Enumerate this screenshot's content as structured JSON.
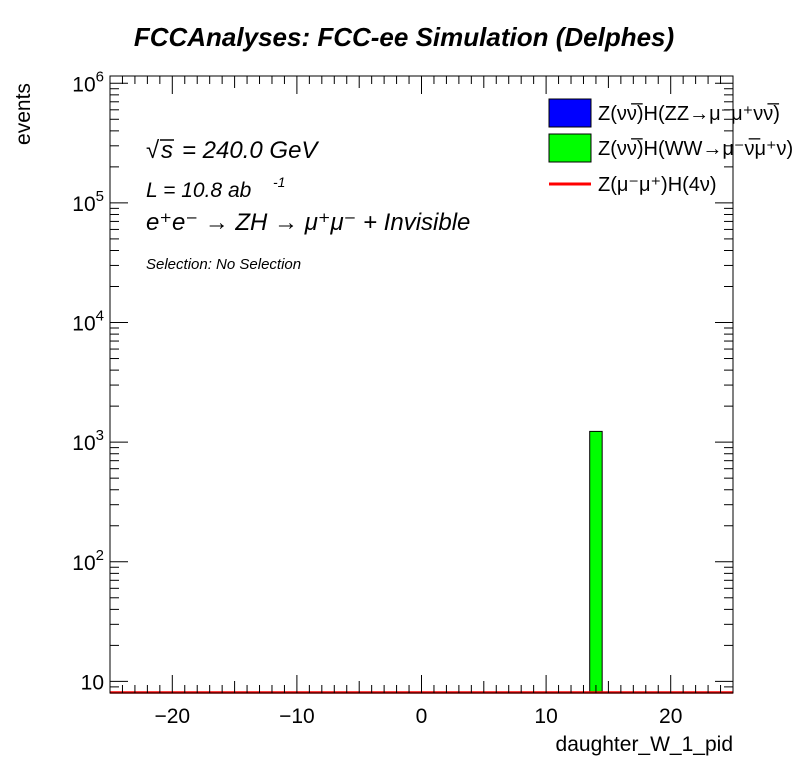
{
  "chart_data": {
    "type": "bar",
    "title": "FCCAnalyses: FCC-ee Simulation (Delphes)",
    "xlabel": "daughter_W_1_pid",
    "ylabel": "events",
    "xlim": [
      -25,
      25
    ],
    "ylim": [
      8,
      1150000
    ],
    "y_scale": "log",
    "x_ticks": [
      -20,
      -10,
      0,
      10,
      20
    ],
    "x_tick_labels": [
      "−20",
      "−10",
      "0",
      "10",
      "20"
    ],
    "y_ticks": [
      10,
      100,
      1000,
      10000,
      100000,
      1000000
    ],
    "y_tick_labels": [
      {
        "base": "10",
        "exp": ""
      },
      {
        "base": "10",
        "exp": "2"
      },
      {
        "base": "10",
        "exp": "3"
      },
      {
        "base": "10",
        "exp": "4"
      },
      {
        "base": "10",
        "exp": "5"
      },
      {
        "base": "10",
        "exp": "6"
      }
    ],
    "series": [
      {
        "name": "Z(νν̅)H(ZZ→μ⁻μ⁺νν̅)",
        "style": "fill",
        "color": "#0000ff",
        "bins": []
      },
      {
        "name": "Z(νν̅)H(WW→μ⁻ν̅μ⁺ν)",
        "style": "fill",
        "color": "#00ff00",
        "bins": [
          {
            "x_low": 13.5,
            "x_high": 14.5,
            "value": 1230
          }
        ]
      },
      {
        "name": "Z(μ⁻μ⁺)H(4ν)",
        "style": "line",
        "color": "#ff0000",
        "bins": []
      }
    ],
    "annotations": {
      "sqrt_s": "= 240.0 GeV",
      "lumi": "L = 10.8 ab",
      "lumi_exp": "-1",
      "process": "e⁺e⁻ → ZH → μ⁺μ⁻ + Invisible",
      "selection": "Selection: No Selection"
    },
    "legend_placement": "top-right",
    "grid": false
  }
}
